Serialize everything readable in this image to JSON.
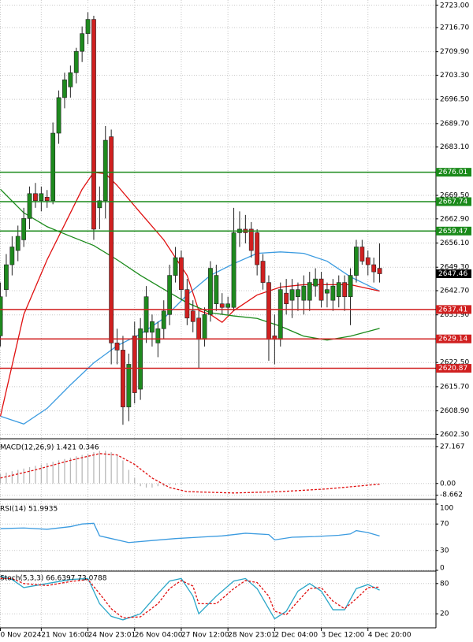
{
  "chart_data": [
    {
      "type": "candlestick",
      "categories": [
        "0 Nov 2024",
        null,
        null,
        null,
        null,
        null,
        null,
        "21 Nov 16:00",
        null,
        null,
        null,
        null,
        null,
        null,
        null,
        "24 Nov 23:01",
        null,
        null,
        null,
        null,
        null,
        null,
        null,
        "26 Nov 04:00",
        null,
        null,
        null,
        null,
        null,
        null,
        null,
        "27 Nov 12:00",
        null,
        null,
        null,
        null,
        null,
        null,
        null,
        "28 Nov 23:01",
        null,
        null,
        null,
        null,
        null,
        null,
        null,
        "2 Dec 04:00",
        null,
        null,
        null,
        null,
        null,
        null,
        null,
        "3 Dec 12:00",
        null,
        null,
        null,
        null,
        null,
        null,
        null,
        "4 Dec 20:00",
        null,
        null
      ],
      "open": [
        2630,
        2643,
        2650,
        2654,
        2657,
        2663,
        2670,
        2668,
        2669,
        2668,
        2687,
        2697,
        2700,
        2704,
        2710,
        2715,
        2719,
        2666,
        2668,
        2686,
        2628,
        2626,
        2610,
        2630,
        2615,
        2631,
        2631,
        2628,
        2632,
        2636,
        2647,
        2652,
        2643,
        2637,
        2635,
        2629,
        2636,
        2639,
        2639,
        2638,
        2638,
        2659,
        2660,
        2660,
        2659,
        2651,
        2645,
        2630,
        2629,
        2642,
        2640,
        2641,
        2640,
        2640,
        2644,
        2646,
        2642,
        2640,
        2641,
        2645,
        2641,
        2647,
        2655,
        2652,
        2650,
        2649
      ],
      "high": [
        2645,
        2653,
        2658,
        2661,
        2666,
        2672,
        2673,
        2672,
        2671,
        2690,
        2699,
        2704,
        2706,
        2711,
        2717,
        2721,
        2720,
        2672,
        2689,
        2688,
        2632,
        2630,
        2625,
        2634,
        2635,
        2644,
        2636,
        2634,
        2640,
        2650,
        2655,
        2654,
        2646,
        2640,
        2637,
        2638,
        2651,
        2650,
        2642,
        2641,
        2666,
        2665,
        2664,
        2662,
        2660,
        2653,
        2647,
        2636,
        2645,
        2646,
        2646,
        2645,
        2647,
        2648,
        2649,
        2648,
        2645,
        2646,
        2647,
        2647,
        2649,
        2657,
        2657,
        2654,
        2652,
        2656
      ],
      "low": [
        2627,
        2641,
        2647,
        2651,
        2655,
        2660,
        2666,
        2665,
        2666,
        2667,
        2684,
        2694,
        2697,
        2701,
        2707,
        2712,
        2657,
        2660,
        2663,
        2622,
        2622,
        2605,
        2606,
        2611,
        2612,
        2628,
        2627,
        2624,
        2629,
        2633,
        2645,
        2640,
        2633,
        2631,
        2621,
        2627,
        2634,
        2637,
        2636,
        2636,
        2637,
        2655,
        2656,
        2652,
        2647,
        2643,
        2623,
        2622,
        2627,
        2636,
        2635,
        2637,
        2636,
        2637,
        2641,
        2638,
        2638,
        2637,
        2638,
        2637,
        2633,
        2645,
        2650,
        2647,
        2645,
        2645
      ],
      "close": [
        2641,
        2650,
        2655,
        2658,
        2663,
        2670,
        2668,
        2670,
        2668,
        2687,
        2697,
        2702,
        2704,
        2710,
        2715,
        2719,
        2660,
        2668,
        2685,
        2628,
        2626,
        2610,
        2622,
        2614,
        2632,
        2641,
        2634,
        2632,
        2637,
        2647,
        2652,
        2643,
        2635,
        2634,
        2629,
        2636,
        2649,
        2647,
        2638,
        2639,
        2659,
        2660,
        2659,
        2654,
        2650,
        2645,
        2629,
        2629,
        2643,
        2639,
        2643,
        2643,
        2644,
        2645,
        2646,
        2640,
        2643,
        2644,
        2645,
        2641,
        2647,
        2655,
        2651,
        2650,
        2648,
        2647.46
      ],
      "up_color": "#1e8a1e",
      "down_color": "#d02020",
      "series": [
        {
          "color": "#3b9be0",
          "x": [
            0,
            4,
            8,
            12,
            16,
            20,
            24,
            28,
            32,
            36,
            40,
            44,
            48,
            52,
            56,
            60,
            65
          ],
          "values": [
            2607.4,
            2605.2,
            2609.6,
            2616.2,
            2622.4,
            2627.2,
            2630.5,
            2634.9,
            2641.5,
            2647,
            2650.3,
            2653.2,
            2653.6,
            2653.2,
            2651,
            2646.6,
            2642.6
          ]
        },
        {
          "color": "#e01010",
          "x": [
            0,
            4,
            8,
            12,
            14,
            16,
            18,
            20,
            24,
            28,
            32,
            34,
            36,
            38,
            40,
            44,
            48,
            52,
            56,
            60,
            65
          ],
          "values": [
            2607.4,
            2636,
            2651.4,
            2664.6,
            2671.2,
            2676,
            2675.6,
            2672.3,
            2664.6,
            2657,
            2647,
            2637.1,
            2636,
            2633.8,
            2637.1,
            2641.5,
            2643.7,
            2644.4,
            2644.4,
            2644.4,
            2642.6
          ]
        },
        {
          "color": "#1a8a1a",
          "x": [
            0,
            4,
            8,
            12,
            16,
            20,
            24,
            28,
            32,
            36,
            40,
            44,
            48,
            52,
            56,
            60,
            65
          ],
          "values": [
            2671.2,
            2664.6,
            2660.7,
            2658,
            2655.4,
            2651.4,
            2647,
            2643.1,
            2639.3,
            2636.5,
            2635.6,
            2634.9,
            2632.7,
            2629.9,
            2628.8,
            2629.9,
            2632.1
          ]
        }
      ],
      "levels": [
        {
          "value": 2676.01,
          "color": "#1a8a1a"
        },
        {
          "value": 2667.74,
          "color": "#1a8a1a"
        },
        {
          "value": 2659.47,
          "color": "#1a8a1a"
        },
        {
          "value": 2637.41,
          "color": "#d02020"
        },
        {
          "value": 2629.14,
          "color": "#d02020"
        },
        {
          "value": 2620.87,
          "color": "#d02020"
        }
      ],
      "last_price": 2647.46,
      "ylim": [
        2601.5,
        2724
      ],
      "yticks": [
        {
          "value": 2723,
          "label": "2723.00"
        },
        {
          "value": 2716.7,
          "label": "2716.70"
        },
        {
          "value": 2709.9,
          "label": "2709.90"
        },
        {
          "value": 2703.3,
          "label": "2703.30"
        },
        {
          "value": 2696.5,
          "label": "2696.50"
        },
        {
          "value": 2689.7,
          "label": "2689.70"
        },
        {
          "value": 2683.1,
          "label": "2683.10"
        },
        {
          "value": 2669.5,
          "label": "2669.50"
        },
        {
          "value": 2662.9,
          "label": "2662.90"
        },
        {
          "value": 2656.1,
          "label": "2656.10"
        },
        {
          "value": 2649.3,
          "label": "2649.30"
        },
        {
          "value": 2642.7,
          "label": "2642.70"
        },
        {
          "value": 2635.9,
          "label": "2635.90"
        },
        {
          "value": 2622.5,
          "label": "2622.50"
        },
        {
          "value": 2615.7,
          "label": "2615.70"
        },
        {
          "value": 2608.9,
          "label": "2608.90"
        },
        {
          "value": 2602.3,
          "label": "2602.30"
        }
      ],
      "grid": true
    },
    {
      "type": "macd",
      "title": "MACD(12,26,9) 1.421 0.346",
      "histogram": [
        7,
        8,
        9,
        10,
        11,
        12,
        13,
        14,
        15,
        16,
        17,
        18,
        19,
        20,
        21,
        22,
        23,
        24,
        24,
        23,
        21,
        17,
        10,
        4,
        -2,
        -3,
        -3,
        -2,
        -2,
        -1,
        -1,
        -1,
        0,
        0,
        0,
        0,
        0,
        0,
        0,
        0,
        0,
        0,
        0,
        0,
        0,
        0,
        0,
        0,
        0,
        0,
        0,
        0,
        0,
        0,
        0,
        0,
        0,
        0,
        0,
        0,
        0,
        0,
        0,
        0,
        0,
        0
      ],
      "histogram_color": "#b4b4b4",
      "series": [
        {
          "color": "#e01010",
          "dashed": true,
          "x": [
            0,
            6,
            12,
            17,
            20,
            23,
            26,
            29,
            32,
            40,
            48,
            56,
            65
          ],
          "values": [
            4,
            10,
            17,
            22,
            21,
            14,
            4,
            -3,
            -6,
            -7,
            -6,
            -4,
            -0.5
          ]
        }
      ],
      "ylim": [
        -10,
        30
      ],
      "yticks": [
        27.167,
        {
          "value": 0,
          "label": "0.00"
        },
        -8.662
      ]
    },
    {
      "type": "line",
      "title": "RSI(14) 51.9935",
      "series": [
        {
          "color": "#3b9be0",
          "x": [
            0,
            4,
            8,
            12,
            14,
            16,
            17,
            19,
            22,
            26,
            30,
            34,
            38,
            42,
            46,
            47,
            50,
            54,
            58,
            60,
            61,
            63,
            65
          ],
          "values": [
            63,
            64,
            62,
            66,
            70,
            71,
            52,
            48,
            42,
            45,
            48,
            50,
            52,
            56,
            54,
            46,
            50,
            51,
            53,
            55,
            60,
            57,
            52
          ]
        }
      ],
      "ylim": [
        0,
        100
      ],
      "yticks": [
        100,
        70,
        30,
        0
      ]
    },
    {
      "type": "line",
      "title": "Stoch(5,3,3) 66.6397 73.0788",
      "series": [
        {
          "color": "#2aa6c8",
          "x": [
            0,
            2,
            4,
            8,
            12,
            15,
            17,
            19,
            21,
            24,
            27,
            29,
            31,
            33,
            34,
            37,
            40,
            42,
            44,
            46,
            47,
            49,
            51,
            53,
            55,
            57,
            59,
            61,
            63,
            65
          ],
          "values": [
            95,
            88,
            72,
            80,
            88,
            90,
            40,
            15,
            8,
            20,
            60,
            85,
            90,
            55,
            20,
            55,
            85,
            90,
            70,
            30,
            10,
            25,
            65,
            80,
            65,
            28,
            28,
            70,
            78,
            67
          ]
        },
        {
          "color": "#e01010",
          "dashed": true,
          "x": [
            0,
            2,
            4,
            8,
            12,
            15,
            17,
            19,
            21,
            24,
            27,
            29,
            31,
            33,
            34,
            37,
            40,
            42,
            44,
            46,
            47,
            49,
            51,
            53,
            55,
            57,
            59,
            61,
            63,
            65
          ],
          "values": [
            90,
            90,
            80,
            76,
            84,
            88,
            60,
            30,
            12,
            14,
            40,
            70,
            86,
            75,
            40,
            40,
            70,
            86,
            82,
            55,
            25,
            18,
            45,
            70,
            72,
            45,
            30,
            50,
            72,
            73
          ]
        }
      ],
      "ylim": [
        0,
        100
      ],
      "yticks": [
        80,
        20
      ]
    }
  ]
}
